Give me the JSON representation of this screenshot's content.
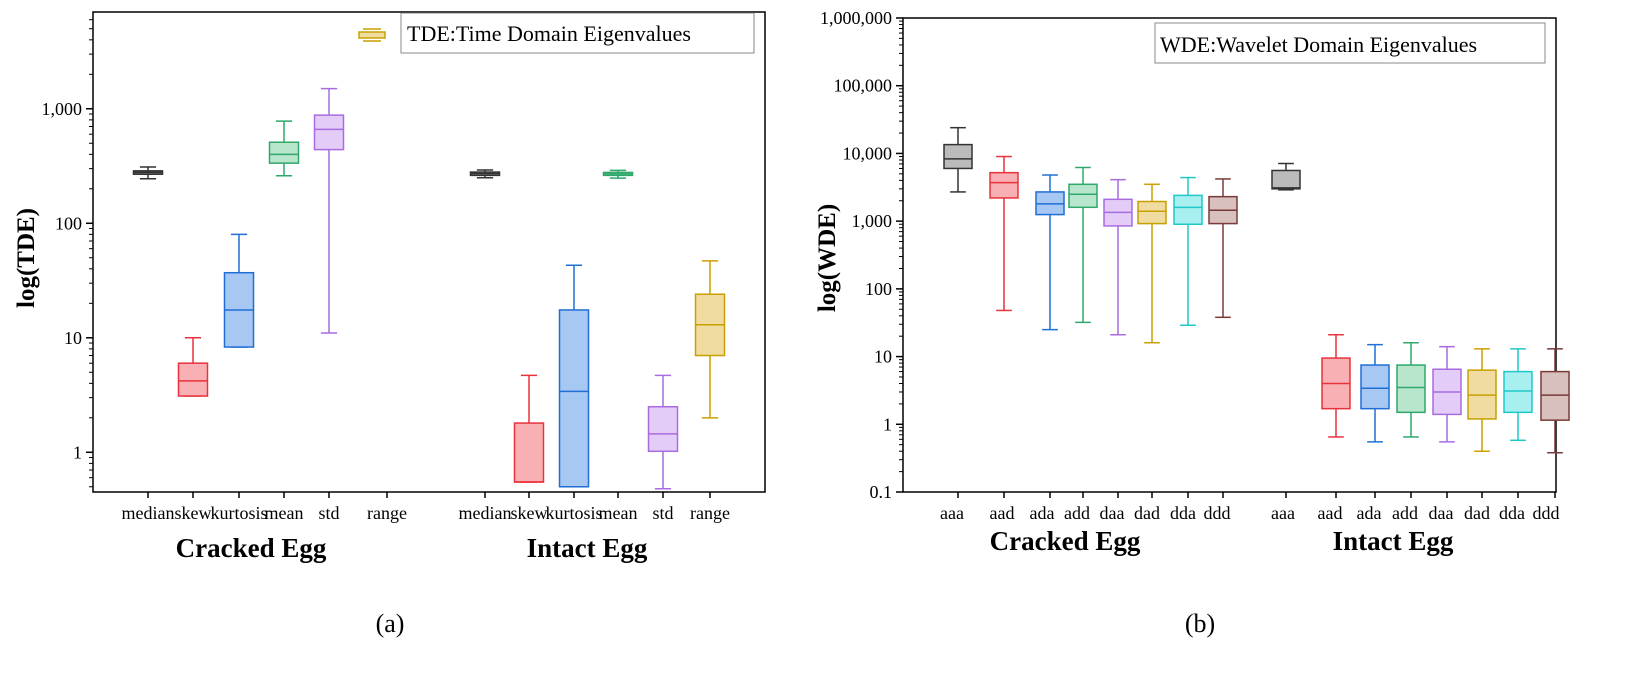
{
  "chart_data": [
    {
      "id": "a",
      "type": "box",
      "caption": "(a)",
      "ylabel": "log(TDE)",
      "yscale": "log",
      "ylim": [
        0.45,
        7000
      ],
      "yticks": [
        1,
        10,
        100,
        1000
      ],
      "ytick_labels": [
        "1",
        "10",
        "100",
        "1,000"
      ],
      "legend": {
        "symbol_color": "#C8A000",
        "text": "TDE:Time Domain Eigenvalues",
        "position": "top-right"
      },
      "groups": [
        {
          "label": "Cracked Egg",
          "category_labels": [
            "median",
            "skew",
            "kurtosis",
            "mean",
            "std",
            "range"
          ]
        },
        {
          "label": "Intact Egg",
          "category_labels": [
            "median",
            "skew",
            "kurtosis",
            "mean",
            "std",
            "range"
          ]
        }
      ],
      "boxes": [
        {
          "group": 0,
          "slot": 0,
          "color": "#333333",
          "fill": "#888888",
          "min": 245,
          "q1": 268,
          "median": 278,
          "q3": 287,
          "max": 310
        },
        {
          "group": 0,
          "slot": 1,
          "color": "#E8323C",
          "fill": "#F8B0B4",
          "min": 3.1,
          "q1": 3.1,
          "median": 4.2,
          "q3": 6.0,
          "max": 10.0
        },
        {
          "group": 0,
          "slot": 2,
          "color": "#1F6FD6",
          "fill": "#A8C8F4",
          "min": 8.3,
          "q1": 8.3,
          "median": 17.5,
          "q3": 37,
          "max": 80
        },
        {
          "group": 0,
          "slot": 3,
          "color": "#2FA86A",
          "fill": "#B8E6CC",
          "min": 260,
          "q1": 335,
          "median": 400,
          "q3": 510,
          "max": 780
        },
        {
          "group": 0,
          "slot": 4,
          "color": "#A86CE0",
          "fill": "#E4CCF8",
          "min": 11,
          "q1": 440,
          "median": 660,
          "q3": 880,
          "max": 1500
        },
        {
          "group": 1,
          "slot": 0,
          "color": "#333333",
          "fill": "#888888",
          "min": 250,
          "q1": 262,
          "median": 272,
          "q3": 280,
          "max": 292
        },
        {
          "group": 1,
          "slot": 1,
          "color": "#E8323C",
          "fill": "#F8B0B4",
          "min": 0.55,
          "q1": 0.55,
          "median": 0.55,
          "q3": 1.8,
          "max": 4.7
        },
        {
          "group": 1,
          "slot": 2,
          "color": "#1F6FD6",
          "fill": "#A8C8F4",
          "min": 0.5,
          "q1": 0.5,
          "median": 3.4,
          "q3": 17.5,
          "max": 43
        },
        {
          "group": 1,
          "slot": 3,
          "color": "#2FA86A",
          "fill": "#B8E6CC",
          "min": 248,
          "q1": 262,
          "median": 270,
          "q3": 278,
          "max": 290
        },
        {
          "group": 1,
          "slot": 4,
          "color": "#A86CE0",
          "fill": "#E4CCF8",
          "min": 0.48,
          "q1": 1.02,
          "median": 1.45,
          "q3": 2.5,
          "max": 4.7
        },
        {
          "group": 1,
          "slot": 5,
          "color": "#C8A000",
          "fill": "#F0DCA0",
          "min": 2.0,
          "q1": 7.0,
          "median": 13,
          "q3": 24,
          "max": 47
        }
      ]
    },
    {
      "id": "b",
      "type": "box",
      "caption": "(b)",
      "ylabel": "log(WDE)",
      "yscale": "log",
      "ylim": [
        0.1,
        1000000
      ],
      "yticks": [
        0.1,
        1,
        10,
        100,
        1000,
        10000,
        100000,
        1000000
      ],
      "ytick_labels": [
        "0.1",
        "1",
        "10",
        "100",
        "1,000",
        "10,000",
        "100,000",
        "1,000,000"
      ],
      "legend": {
        "text": "WDE:Wavelet Domain Eigenvalues",
        "position": "top-right"
      },
      "groups": [
        {
          "label": "Cracked Egg",
          "category_labels": [
            "aaa",
            "aad",
            "ada",
            "add",
            "daa",
            "dad",
            "dda",
            "ddd"
          ]
        },
        {
          "label": "Intact Egg",
          "category_labels": [
            "aaa",
            "aad",
            "ada",
            "add",
            "daa",
            "dad",
            "dda",
            "ddd"
          ]
        }
      ],
      "boxes": [
        {
          "group": 0,
          "slot": 0,
          "color": "#333333",
          "fill": "#BBBBBB",
          "min": 2700,
          "q1": 6000,
          "median": 8300,
          "q3": 13500,
          "max": 24000
        },
        {
          "group": 0,
          "slot": 1,
          "color": "#E8323C",
          "fill": "#F8B0B4",
          "min": 48,
          "q1": 2200,
          "median": 3700,
          "q3": 5200,
          "max": 9000
        },
        {
          "group": 0,
          "slot": 2,
          "color": "#1F6FD6",
          "fill": "#A8C8F4",
          "min": 25,
          "q1": 1250,
          "median": 1800,
          "q3": 2700,
          "max": 4800
        },
        {
          "group": 0,
          "slot": 3,
          "color": "#2FA86A",
          "fill": "#B8E6CC",
          "min": 32,
          "q1": 1600,
          "median": 2500,
          "q3": 3500,
          "max": 6200
        },
        {
          "group": 0,
          "slot": 4,
          "color": "#A86CE0",
          "fill": "#E4CCF8",
          "min": 21,
          "q1": 850,
          "median": 1350,
          "q3": 2100,
          "max": 4100
        },
        {
          "group": 0,
          "slot": 5,
          "color": "#C8A000",
          "fill": "#F0DCA0",
          "min": 16,
          "q1": 920,
          "median": 1400,
          "q3": 1950,
          "max": 3500
        },
        {
          "group": 0,
          "slot": 6,
          "color": "#1FC8C8",
          "fill": "#A8F0F0",
          "min": 29,
          "q1": 900,
          "median": 1600,
          "q3": 2400,
          "max": 4400
        },
        {
          "group": 0,
          "slot": 7,
          "color": "#7A3A3A",
          "fill": "#D8C0BC",
          "min": 38,
          "q1": 920,
          "median": 1450,
          "q3": 2300,
          "max": 4200
        },
        {
          "group": 1,
          "slot": 0,
          "color": "#333333",
          "fill": "#BBBBBB",
          "min": 2900,
          "q1": 3000,
          "median": 3100,
          "q3": 5600,
          "max": 7100
        },
        {
          "group": 1,
          "slot": 1,
          "color": "#E8323C",
          "fill": "#F8B0B4",
          "min": 0.65,
          "q1": 1.7,
          "median": 4.0,
          "q3": 9.5,
          "max": 21
        },
        {
          "group": 1,
          "slot": 2,
          "color": "#1F6FD6",
          "fill": "#A8C8F4",
          "min": 0.55,
          "q1": 1.7,
          "median": 3.4,
          "q3": 7.5,
          "max": 15
        },
        {
          "group": 1,
          "slot": 3,
          "color": "#2FA86A",
          "fill": "#B8E6CC",
          "min": 0.65,
          "q1": 1.5,
          "median": 3.5,
          "q3": 7.5,
          "max": 16
        },
        {
          "group": 1,
          "slot": 4,
          "color": "#A86CE0",
          "fill": "#E4CCF8",
          "min": 0.55,
          "q1": 1.4,
          "median": 3.0,
          "q3": 6.5,
          "max": 14
        },
        {
          "group": 1,
          "slot": 5,
          "color": "#C8A000",
          "fill": "#F0DCA0",
          "min": 0.4,
          "q1": 1.2,
          "median": 2.7,
          "q3": 6.3,
          "max": 13
        },
        {
          "group": 1,
          "slot": 6,
          "color": "#1FC8C8",
          "fill": "#A8F0F0",
          "min": 0.58,
          "q1": 1.5,
          "median": 3.1,
          "q3": 6.0,
          "max": 13
        },
        {
          "group": 1,
          "slot": 7,
          "color": "#7A3A3A",
          "fill": "#D8C0BC",
          "min": 0.38,
          "q1": 1.15,
          "median": 2.7,
          "q3": 6.0,
          "max": 13
        }
      ]
    }
  ]
}
